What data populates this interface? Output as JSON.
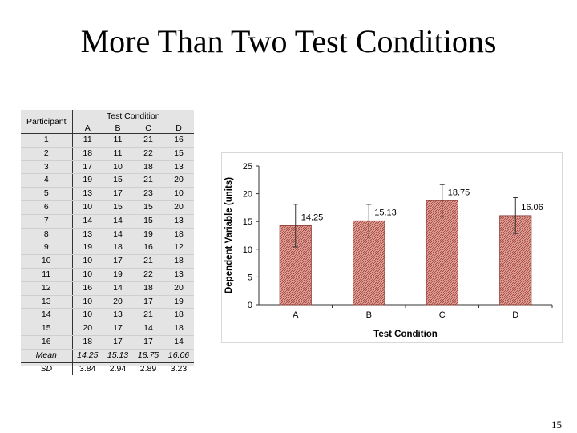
{
  "slide": {
    "title": "More Than Two Test Conditions",
    "page_number": "15"
  },
  "table": {
    "participant_header": "Participant",
    "condition_header": "Test Condition",
    "columns": [
      "A",
      "B",
      "C",
      "D"
    ],
    "rows": [
      {
        "participant": "1",
        "values": [
          "11",
          "11",
          "21",
          "16"
        ]
      },
      {
        "participant": "2",
        "values": [
          "18",
          "11",
          "22",
          "15"
        ]
      },
      {
        "participant": "3",
        "values": [
          "17",
          "10",
          "18",
          "13"
        ]
      },
      {
        "participant": "4",
        "values": [
          "19",
          "15",
          "21",
          "20"
        ]
      },
      {
        "participant": "5",
        "values": [
          "13",
          "17",
          "23",
          "10"
        ]
      },
      {
        "participant": "6",
        "values": [
          "10",
          "15",
          "15",
          "20"
        ]
      },
      {
        "participant": "7",
        "values": [
          "14",
          "14",
          "15",
          "13"
        ]
      },
      {
        "participant": "8",
        "values": [
          "13",
          "14",
          "19",
          "18"
        ]
      },
      {
        "participant": "9",
        "values": [
          "19",
          "18",
          "16",
          "12"
        ]
      },
      {
        "participant": "10",
        "values": [
          "10",
          "17",
          "21",
          "18"
        ]
      },
      {
        "participant": "11",
        "values": [
          "10",
          "19",
          "22",
          "13"
        ]
      },
      {
        "participant": "12",
        "values": [
          "16",
          "14",
          "18",
          "20"
        ]
      },
      {
        "participant": "13",
        "values": [
          "10",
          "20",
          "17",
          "19"
        ]
      },
      {
        "participant": "14",
        "values": [
          "10",
          "13",
          "21",
          "18"
        ]
      },
      {
        "participant": "15",
        "values": [
          "20",
          "17",
          "14",
          "18"
        ]
      },
      {
        "participant": "16",
        "values": [
          "18",
          "17",
          "17",
          "14"
        ]
      }
    ],
    "mean_label": "Mean",
    "mean_values": [
      "14.25",
      "15.13",
      "18.75",
      "16.06"
    ],
    "sd_label": "SD",
    "sd_values": [
      "3.84",
      "2.94",
      "2.89",
      "3.23"
    ]
  },
  "chart_data": {
    "type": "bar",
    "categories": [
      "A",
      "B",
      "C",
      "D"
    ],
    "values": [
      14.25,
      15.13,
      18.75,
      16.06
    ],
    "value_labels": [
      "14.25",
      "15.13",
      "18.75",
      "16.06"
    ],
    "error": [
      3.84,
      2.94,
      2.89,
      3.23
    ],
    "xlabel": "Test Condition",
    "ylabel": "Dependent Variable (units)",
    "ylim": [
      0,
      25
    ],
    "yticks": [
      0,
      5,
      10,
      15,
      20,
      25
    ],
    "grid": false,
    "bar_color": "#c0504d",
    "bar_fill_style": "hatched"
  }
}
